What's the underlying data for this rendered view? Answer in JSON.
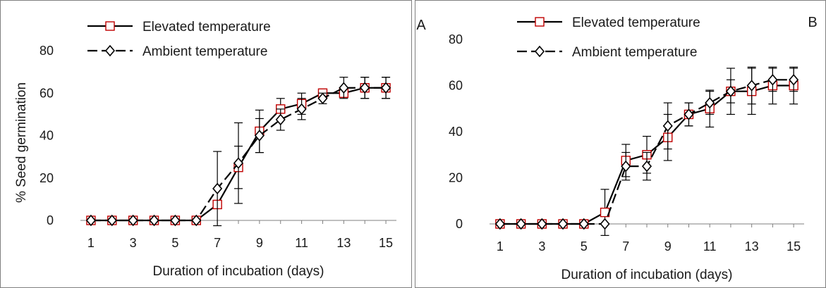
{
  "chart_data": [
    {
      "type": "line",
      "panel_label": "A",
      "title": "",
      "xlabel": "Duration of incubation (days)",
      "ylabel": "% Seed germination",
      "xlim": [
        0.5,
        15.5
      ],
      "ylim": [
        0,
        80
      ],
      "x_ticks": [
        1,
        3,
        5,
        7,
        9,
        11,
        13,
        15
      ],
      "y_ticks": [
        0,
        20,
        40,
        60,
        80
      ],
      "legend_position": "top-left",
      "series": [
        {
          "name": "Elevated temperature",
          "marker": "square",
          "line_style": "solid",
          "marker_color": "#c00000",
          "x": [
            1,
            2,
            3,
            4,
            5,
            6,
            7,
            8,
            9,
            10,
            11,
            12,
            13,
            14,
            15
          ],
          "values": [
            0,
            0,
            0,
            0,
            0,
            0,
            7.5,
            25,
            42,
            52.5,
            55,
            60,
            60,
            62.5,
            62.5
          ],
          "errors": [
            0,
            0,
            0,
            0,
            0,
            0,
            0,
            10,
            10,
            5,
            5,
            0,
            0,
            5,
            5
          ]
        },
        {
          "name": "Ambient temperature",
          "marker": "diamond",
          "line_style": "dashed",
          "marker_color": "#000000",
          "x": [
            1,
            2,
            3,
            4,
            5,
            6,
            7,
            8,
            9,
            10,
            11,
            12,
            13,
            14,
            15
          ],
          "values": [
            0,
            0,
            0,
            0,
            0,
            0,
            15,
            27,
            40,
            47.5,
            52.5,
            57.5,
            62.5,
            62.5,
            62.5
          ],
          "errors": [
            0,
            0,
            0,
            0,
            0,
            0,
            17.5,
            19,
            8,
            5,
            5,
            2.5,
            5,
            5,
            5
          ]
        }
      ]
    },
    {
      "type": "line",
      "panel_label": "B",
      "title": "",
      "xlabel": "Duration of incubation (days)",
      "ylabel": "",
      "xlim": [
        0.5,
        15.5
      ],
      "ylim": [
        0,
        80
      ],
      "x_ticks": [
        1,
        3,
        5,
        7,
        9,
        11,
        13,
        15
      ],
      "y_ticks": [
        0,
        20,
        40,
        60,
        80
      ],
      "legend_position": "top-left",
      "series": [
        {
          "name": "Elevated temperature",
          "marker": "square",
          "line_style": "solid",
          "marker_color": "#c00000",
          "x": [
            1,
            2,
            3,
            4,
            5,
            6,
            7,
            8,
            9,
            10,
            11,
            12,
            13,
            14,
            15
          ],
          "values": [
            0,
            0,
            0,
            0,
            0,
            5,
            27.5,
            30,
            37.5,
            47.5,
            50,
            57.5,
            57.5,
            60,
            60
          ],
          "errors": [
            0,
            0,
            0,
            0,
            0,
            10,
            7,
            8,
            10,
            5,
            8,
            10,
            10,
            8,
            8
          ]
        },
        {
          "name": "Ambient temperature",
          "marker": "diamond",
          "line_style": "dashed",
          "marker_color": "#000000",
          "x": [
            1,
            2,
            3,
            4,
            5,
            6,
            7,
            8,
            9,
            10,
            11,
            12,
            13,
            14,
            15
          ],
          "values": [
            0,
            0,
            0,
            0,
            0,
            0,
            25,
            25,
            42.5,
            47.5,
            52.5,
            57.5,
            60,
            62.5,
            62.5
          ],
          "errors": [
            0,
            0,
            0,
            0,
            0,
            0,
            6,
            6,
            10,
            5,
            5,
            5,
            8,
            5,
            5
          ]
        }
      ]
    }
  ]
}
